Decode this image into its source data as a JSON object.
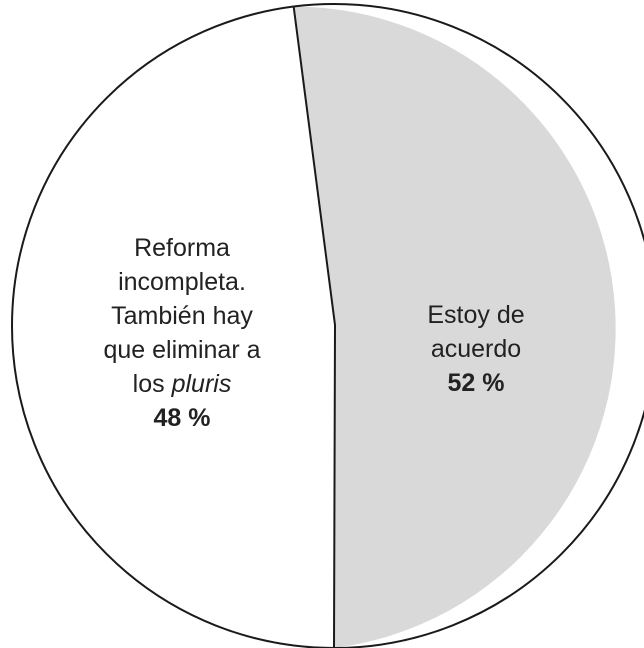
{
  "chart_data": {
    "type": "pie",
    "slices": [
      {
        "label_lines": [
          "Estoy de",
          "acuerdo"
        ],
        "value": 52,
        "value_text": "52 %",
        "color": "#d9d9d9"
      },
      {
        "label_lines": [
          "Reforma",
          "incompleta.",
          "También hay",
          "que eliminar a"
        ],
        "label_last_plain": "los ",
        "label_last_italic": "pluris",
        "value": 48,
        "value_text": "48 %",
        "color": "#ffffff"
      }
    ],
    "outline_color": "#1a1a1a"
  }
}
